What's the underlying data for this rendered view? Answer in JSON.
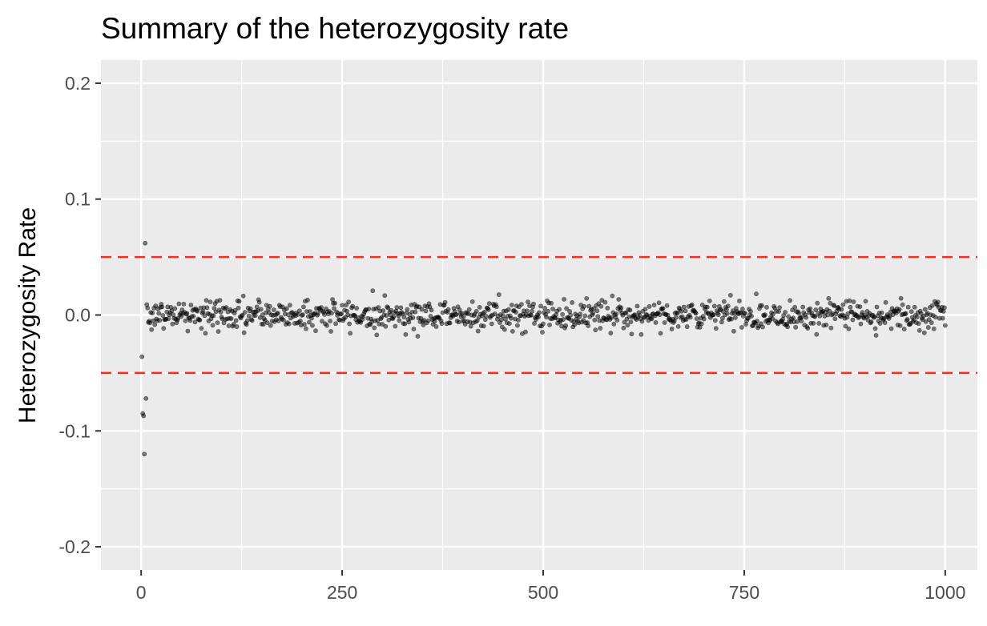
{
  "chart_data": {
    "type": "scatter",
    "title": "Summary of the heterozygosity rate",
    "xlabel": "",
    "ylabel": "Heterozygosity Rate",
    "xlim": [
      -50,
      1040
    ],
    "ylim": [
      -0.22,
      0.22
    ],
    "x_ticks": [
      0,
      250,
      500,
      750,
      1000
    ],
    "x_tick_labels": [
      "0",
      "250",
      "500",
      "750",
      "1000"
    ],
    "y_ticks": [
      -0.2,
      -0.1,
      0.0,
      0.1,
      0.2
    ],
    "y_tick_labels": [
      "-0.2",
      "-0.1",
      "0.0",
      "0.1",
      "0.2"
    ],
    "grid": true,
    "background": "#ebebeb",
    "point_color": "#000000",
    "point_opacity": 0.5,
    "reference_lines": [
      {
        "axis": "y",
        "value": 0.05,
        "color": "#ff2a1a",
        "style": "dashed"
      },
      {
        "axis": "y",
        "value": -0.05,
        "color": "#ff2a1a",
        "style": "dashed"
      }
    ],
    "outliers": [
      {
        "x": 1,
        "y": -0.036
      },
      {
        "x": 2,
        "y": -0.085
      },
      {
        "x": 3,
        "y": -0.087
      },
      {
        "x": 4,
        "y": -0.12
      },
      {
        "x": 5,
        "y": 0.062
      },
      {
        "x": 6,
        "y": -0.072
      },
      {
        "x": 7,
        "y": 0.009
      }
    ],
    "bulk": {
      "n": 993,
      "x_start": 8,
      "x_end": 1000,
      "center": 0.0,
      "spread_min": -0.02,
      "spread_max": 0.022
    }
  }
}
